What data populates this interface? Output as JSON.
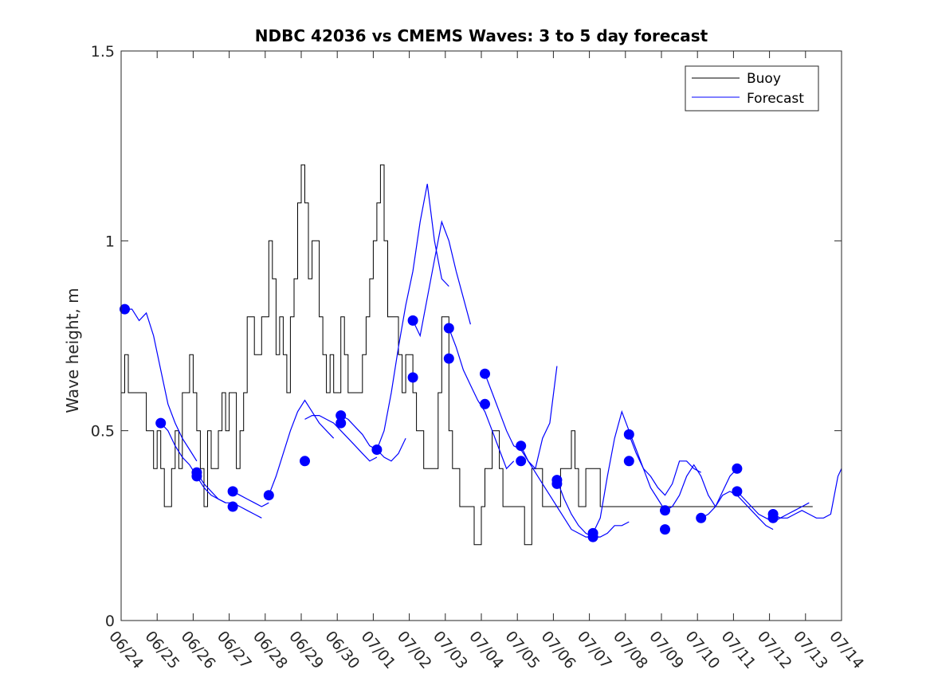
{
  "chart_data": {
    "type": "line",
    "title": "NDBC 42036 vs CMEMS Waves: 3 to 5 day forecast",
    "xlabel": "",
    "ylabel": "Wave height, m",
    "ylim": [
      0,
      1.5
    ],
    "y_ticks": [
      0,
      0.5,
      1,
      1.5
    ],
    "y_tick_labels": [
      "0",
      "0.5",
      "1",
      "1.5"
    ],
    "x_start": "06/24",
    "x_ticks": [
      "06/24",
      "06/25",
      "06/26",
      "06/27",
      "06/28",
      "06/29",
      "06/30",
      "07/01",
      "07/02",
      "07/03",
      "07/04",
      "07/05",
      "07/06",
      "07/07",
      "07/08",
      "07/09",
      "07/10",
      "07/11",
      "07/12",
      "07/13",
      "07/14"
    ],
    "legend": {
      "position": "top-right",
      "entries": [
        {
          "label": "Buoy",
          "color": "#000000"
        },
        {
          "label": "Forecast",
          "color": "#0000ff"
        }
      ]
    },
    "buoy": {
      "name": "Buoy",
      "color": "#000000",
      "x": [
        0,
        0.1,
        0.2,
        0.3,
        0.5,
        0.6,
        0.7,
        0.8,
        0.9,
        1.0,
        1.1,
        1.2,
        1.3,
        1.4,
        1.5,
        1.6,
        1.7,
        1.8,
        1.9,
        2.0,
        2.1,
        2.2,
        2.3,
        2.4,
        2.5,
        2.6,
        2.7,
        2.8,
        2.9,
        3.0,
        3.1,
        3.2,
        3.3,
        3.4,
        3.5,
        3.6,
        3.7,
        3.8,
        3.9,
        4.0,
        4.1,
        4.2,
        4.3,
        4.4,
        4.5,
        4.6,
        4.7,
        4.8,
        4.9,
        5.0,
        5.1,
        5.2,
        5.3,
        5.4,
        5.5,
        5.6,
        5.7,
        5.8,
        5.9,
        6.0,
        6.1,
        6.2,
        6.3,
        6.4,
        6.5,
        6.6,
        6.7,
        6.8,
        6.9,
        7.0,
        7.1,
        7.2,
        7.3,
        7.4,
        7.5,
        7.6,
        7.7,
        7.8,
        7.9,
        8.0,
        8.1,
        8.2,
        8.3,
        8.4,
        8.5,
        8.6,
        8.7,
        8.8,
        8.9,
        9.0,
        9.1,
        9.2,
        9.3,
        9.4,
        9.5,
        9.6,
        9.7,
        9.8,
        9.9,
        10.0,
        10.1,
        10.2,
        10.3,
        10.4,
        10.5,
        10.6,
        10.7,
        10.8,
        10.9,
        11.0,
        11.1,
        11.2,
        11.3,
        11.4,
        11.5,
        11.6,
        11.7,
        11.8,
        11.9,
        12.0,
        12.1,
        12.2,
        12.3,
        12.4,
        12.5,
        12.6,
        12.7,
        12.8,
        12.9,
        13.0,
        13.1,
        13.2,
        13.3,
        13.4,
        13.5,
        13.6,
        13.7,
        13.8,
        13.9,
        14.0,
        14.1,
        14.2,
        14.3,
        14.4,
        14.5,
        14.6,
        14.7,
        14.8,
        14.9,
        15.0,
        15.1,
        15.2,
        15.3,
        15.4,
        15.5,
        15.6,
        15.7,
        15.8,
        15.9,
        16.0,
        16.1,
        16.2,
        16.3,
        16.4,
        16.5,
        16.6,
        16.7,
        16.8,
        16.9,
        17.0,
        17.1,
        17.2,
        17.3,
        17.4,
        17.5,
        17.6,
        17.7,
        17.8,
        17.9,
        18.0,
        18.2,
        18.4,
        18.6,
        18.8,
        19.0,
        19.2
      ],
      "y": [
        0.6,
        0.7,
        0.6,
        0.6,
        0.6,
        0.6,
        0.5,
        0.5,
        0.4,
        0.5,
        0.4,
        0.3,
        0.3,
        0.4,
        0.5,
        0.4,
        0.6,
        0.6,
        0.7,
        0.6,
        0.5,
        0.4,
        0.3,
        0.5,
        0.4,
        0.4,
        0.5,
        0.6,
        0.5,
        0.6,
        0.6,
        0.4,
        0.5,
        0.6,
        0.8,
        0.8,
        0.7,
        0.7,
        0.8,
        0.8,
        1.0,
        0.9,
        0.7,
        0.8,
        0.7,
        0.6,
        0.8,
        0.9,
        1.1,
        1.2,
        1.1,
        0.9,
        1.0,
        1.0,
        0.8,
        0.7,
        0.6,
        0.7,
        0.6,
        0.6,
        0.8,
        0.7,
        0.6,
        0.6,
        0.6,
        0.6,
        0.7,
        0.8,
        0.9,
        1.0,
        1.1,
        1.2,
        1.0,
        0.8,
        0.8,
        0.8,
        0.7,
        0.6,
        0.7,
        0.7,
        0.6,
        0.5,
        0.5,
        0.4,
        0.4,
        0.4,
        0.4,
        0.6,
        0.8,
        0.8,
        0.5,
        0.4,
        0.4,
        0.3,
        0.3,
        0.3,
        0.3,
        0.2,
        0.2,
        0.3,
        0.4,
        0.4,
        0.5,
        0.5,
        0.4,
        0.3,
        0.3,
        0.3,
        0.3,
        0.3,
        0.3,
        0.2,
        0.2,
        0.4,
        0.4,
        0.4,
        0.3,
        0.3,
        0.3,
        0.3,
        0.3,
        0.4,
        0.4,
        0.4,
        0.5,
        0.4,
        0.3,
        0.3,
        0.4,
        0.4,
        0.4,
        0.4,
        0.3,
        0.3,
        0.3,
        0.3,
        0.3,
        0.3,
        0.3,
        0.3,
        0.3,
        0.3,
        0.3,
        0.3,
        0.3,
        0.3,
        0.3,
        0.3,
        0.3,
        0.3,
        0.3,
        0.3,
        0.3,
        0.3,
        0.3,
        0.3,
        0.3,
        0.3,
        0.3,
        0.3,
        0.3,
        0.3,
        0.3,
        0.3,
        0.3,
        0.3,
        0.3,
        0.3,
        0.3,
        0.3,
        0.3,
        0.3,
        0.3,
        0.3,
        0.3,
        0.3,
        0.3,
        0.3,
        0.3,
        0.3,
        0.3,
        0.3,
        0.3,
        0.3,
        0.3,
        0.3
      ]
    },
    "forecast_series": [
      {
        "x": [
          0.1,
          0.3,
          0.5,
          0.7,
          0.9,
          1.1,
          1.3,
          1.5,
          1.7,
          1.9,
          2.1
        ],
        "y": [
          0.82,
          0.82,
          0.79,
          0.81,
          0.75,
          0.66,
          0.57,
          0.52,
          0.48,
          0.45,
          0.42
        ]
      },
      {
        "x": [
          1.1,
          1.3,
          1.5,
          1.7,
          1.9,
          2.1,
          2.3,
          2.5,
          2.7,
          2.9
        ],
        "y": [
          0.52,
          0.5,
          0.46,
          0.43,
          0.41,
          0.38,
          0.35,
          0.33,
          0.32,
          0.31
        ]
      },
      {
        "x": [
          2.1,
          2.3,
          2.5,
          2.7,
          2.9,
          3.1,
          3.3,
          3.5,
          3.7,
          3.9
        ],
        "y": [
          0.39,
          0.36,
          0.34,
          0.32,
          0.31,
          0.31,
          0.3,
          0.29,
          0.28,
          0.27
        ]
      },
      {
        "x": [
          3.1,
          3.3,
          3.5,
          3.7,
          3.9,
          4.1
        ],
        "y": [
          0.34,
          0.33,
          0.32,
          0.31,
          0.3,
          0.31
        ]
      },
      {
        "x": [
          4.1,
          4.3,
          4.5,
          4.7,
          4.9,
          5.1,
          5.3,
          5.5,
          5.7,
          5.9
        ],
        "y": [
          0.33,
          0.38,
          0.44,
          0.5,
          0.55,
          0.58,
          0.55,
          0.52,
          0.5,
          0.48
        ]
      },
      {
        "x": [
          5.1,
          5.3,
          5.5,
          5.7,
          5.9,
          6.1,
          6.3,
          6.5,
          6.7,
          6.9,
          7.1
        ],
        "y": [
          0.53,
          0.54,
          0.54,
          0.53,
          0.52,
          0.5,
          0.48,
          0.46,
          0.44,
          0.42,
          0.43
        ]
      },
      {
        "x": [
          6.1,
          6.3,
          6.5,
          6.7,
          6.9,
          7.1,
          7.3,
          7.5,
          7.7,
          7.9
        ],
        "y": [
          0.54,
          0.53,
          0.51,
          0.49,
          0.46,
          0.45,
          0.43,
          0.42,
          0.44,
          0.48
        ]
      },
      {
        "x": [
          7.1,
          7.3,
          7.5,
          7.7,
          7.9,
          8.1,
          8.3,
          8.5,
          8.7,
          8.9,
          9.1
        ],
        "y": [
          0.45,
          0.5,
          0.6,
          0.72,
          0.83,
          0.92,
          1.05,
          1.15,
          1.0,
          0.9,
          0.88
        ]
      },
      {
        "x": [
          8.1,
          8.3,
          8.5,
          8.7,
          8.9,
          9.1,
          9.3,
          9.5,
          9.7
        ],
        "y": [
          0.79,
          0.75,
          0.85,
          0.95,
          1.05,
          1.0,
          0.92,
          0.85,
          0.78
        ]
      },
      {
        "x": [
          9.1,
          9.3,
          9.5,
          9.7,
          9.9,
          10.1,
          10.3,
          10.5,
          10.7,
          10.9
        ],
        "y": [
          0.77,
          0.72,
          0.66,
          0.62,
          0.58,
          0.55,
          0.5,
          0.45,
          0.4,
          0.42
        ]
      },
      {
        "x": [
          10.1,
          10.3,
          10.5,
          10.7,
          10.9,
          11.1,
          11.3,
          11.5,
          11.7,
          11.9,
          12.1
        ],
        "y": [
          0.65,
          0.6,
          0.55,
          0.5,
          0.46,
          0.45,
          0.42,
          0.4,
          0.48,
          0.52,
          0.67
        ]
      },
      {
        "x": [
          11.1,
          11.3,
          11.5,
          11.7,
          11.9,
          12.1,
          12.3,
          12.5,
          12.7,
          12.9,
          13.1
        ],
        "y": [
          0.46,
          0.42,
          0.39,
          0.36,
          0.33,
          0.3,
          0.27,
          0.24,
          0.23,
          0.22,
          0.22
        ]
      },
      {
        "x": [
          12.1,
          12.3,
          12.5,
          12.7,
          12.9,
          13.1,
          13.3,
          13.5,
          13.7,
          13.9,
          14.1
        ],
        "y": [
          0.37,
          0.32,
          0.28,
          0.25,
          0.23,
          0.22,
          0.22,
          0.23,
          0.25,
          0.25,
          0.26
        ]
      },
      {
        "x": [
          13.1,
          13.3,
          13.5,
          13.7,
          13.9,
          14.1,
          14.3,
          14.5,
          14.7,
          14.9,
          15.1
        ],
        "y": [
          0.23,
          0.27,
          0.38,
          0.48,
          0.55,
          0.5,
          0.45,
          0.4,
          0.35,
          0.32,
          0.29
        ]
      },
      {
        "x": [
          14.1,
          14.3,
          14.5,
          14.7,
          14.9,
          15.1,
          15.3,
          15.5,
          15.7,
          15.9,
          16.1
        ],
        "y": [
          0.49,
          0.44,
          0.4,
          0.38,
          0.35,
          0.33,
          0.36,
          0.42,
          0.42,
          0.4,
          0.39
        ]
      },
      {
        "x": [
          15.1,
          15.3,
          15.5,
          15.7,
          15.9,
          16.1,
          16.3,
          16.5,
          16.7,
          16.9,
          17.1
        ],
        "y": [
          0.29,
          0.3,
          0.33,
          0.38,
          0.41,
          0.38,
          0.33,
          0.3,
          0.34,
          0.38,
          0.4
        ]
      },
      {
        "x": [
          16.1,
          16.3,
          16.5,
          16.7,
          16.9,
          17.1,
          17.3,
          17.5,
          17.7,
          17.9,
          18.1
        ],
        "y": [
          0.27,
          0.28,
          0.3,
          0.33,
          0.34,
          0.33,
          0.31,
          0.29,
          0.27,
          0.25,
          0.24
        ]
      },
      {
        "x": [
          17.1,
          17.3,
          17.5,
          17.7,
          17.9,
          18.1,
          18.3,
          18.5,
          18.7,
          18.9,
          19.1
        ],
        "y": [
          0.34,
          0.32,
          0.3,
          0.28,
          0.27,
          0.26,
          0.27,
          0.28,
          0.29,
          0.3,
          0.31
        ]
      },
      {
        "x": [
          18.1,
          18.3,
          18.5,
          18.7,
          18.9,
          19.1,
          19.3,
          19.5,
          19.7,
          19.9,
          20.0
        ],
        "y": [
          0.28,
          0.27,
          0.27,
          0.28,
          0.29,
          0.28,
          0.27,
          0.27,
          0.28,
          0.38,
          0.4
        ]
      }
    ],
    "forecast_color": "#0000ff",
    "forecast_start_points": {
      "x": [
        0.1,
        1.1,
        2.1,
        2.1,
        3.1,
        3.1,
        4.1,
        5.1,
        6.1,
        6.1,
        7.1,
        8.1,
        8.1,
        9.1,
        9.1,
        10.1,
        10.1,
        11.1,
        11.1,
        12.1,
        12.1,
        13.1,
        13.1,
        14.1,
        14.1,
        15.1,
        15.1,
        16.1,
        17.1,
        17.1,
        18.1,
        18.1
      ],
      "y": [
        0.82,
        0.52,
        0.39,
        0.38,
        0.34,
        0.3,
        0.33,
        0.42,
        0.54,
        0.52,
        0.45,
        0.79,
        0.64,
        0.77,
        0.69,
        0.65,
        0.57,
        0.46,
        0.42,
        0.37,
        0.36,
        0.23,
        0.22,
        0.49,
        0.42,
        0.29,
        0.24,
        0.27,
        0.4,
        0.34,
        0.28,
        0.27
      ]
    }
  }
}
